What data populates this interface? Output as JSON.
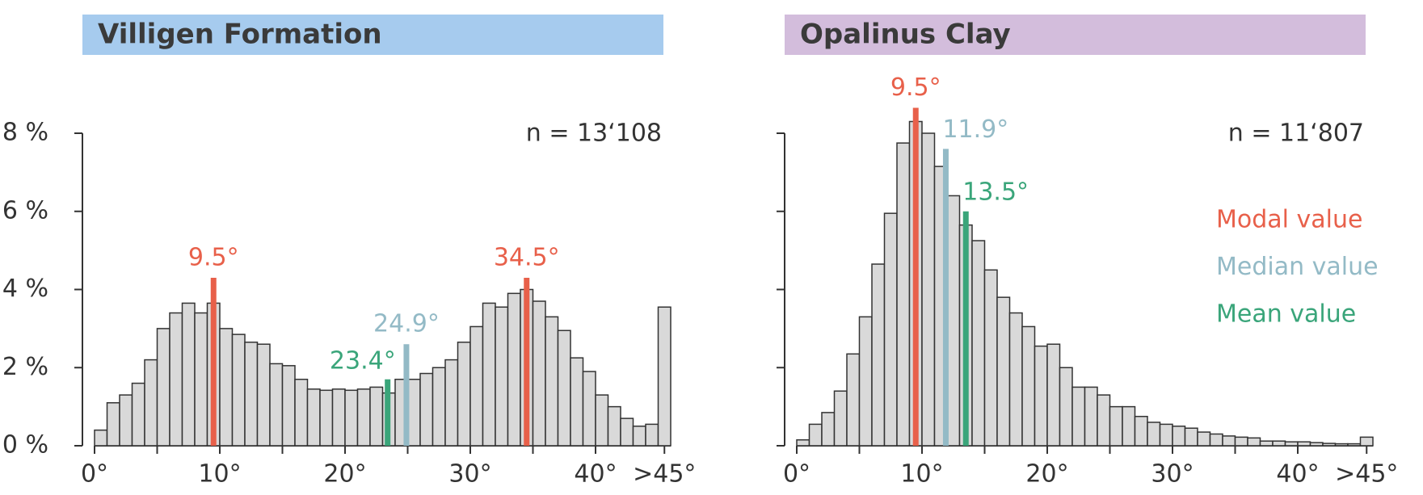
{
  "chart_data": [
    {
      "type": "histogram",
      "title": "Villigen Formation",
      "title_color": "#a6cbee",
      "annotation": "n = 13‘108",
      "bins": [
        0,
        1,
        2,
        3,
        4,
        5,
        6,
        7,
        8,
        9,
        10,
        11,
        12,
        13,
        14,
        15,
        16,
        17,
        18,
        19,
        20,
        21,
        22,
        23,
        24,
        25,
        26,
        27,
        28,
        29,
        30,
        31,
        32,
        33,
        34,
        35,
        36,
        37,
        38,
        39,
        40,
        41,
        42,
        43,
        44,
        45,
        46
      ],
      "values": [
        0.4,
        1.1,
        1.3,
        1.6,
        2.2,
        3.0,
        3.4,
        3.65,
        3.4,
        3.65,
        3.0,
        2.85,
        2.65,
        2.6,
        2.1,
        2.05,
        1.7,
        1.45,
        1.42,
        1.45,
        1.42,
        1.45,
        1.5,
        1.35,
        1.7,
        1.7,
        1.85,
        2.0,
        2.2,
        2.65,
        3.05,
        3.65,
        3.55,
        3.9,
        4.0,
        3.7,
        3.3,
        2.95,
        2.25,
        1.9,
        1.3,
        1.0,
        0.7,
        0.5,
        0.55,
        3.55
      ],
      "color": "#d9d9d9",
      "xlim": [
        0,
        46
      ],
      "ylim": [
        0,
        8
      ],
      "xticks": [
        {
          "value": 0,
          "label": "0°"
        },
        {
          "value": 10,
          "label": "10°"
        },
        {
          "value": 20,
          "label": "20°"
        },
        {
          "value": 30,
          "label": "30°"
        },
        {
          "value": 40,
          "label": "40°"
        },
        {
          "value": 45.5,
          "label": ">45°"
        }
      ],
      "xminor": [
        5,
        15,
        25,
        35
      ],
      "yticks": [
        {
          "value": 0,
          "label": "0 %"
        },
        {
          "value": 2,
          "label": "2 %"
        },
        {
          "value": 4,
          "label": "4 %"
        },
        {
          "value": 6,
          "label": "6 %"
        },
        {
          "value": 8,
          "label": "8 %"
        }
      ],
      "ytick_labels": true,
      "markers": [
        {
          "value": 9.5,
          "label": "9.5°",
          "color": "#e8604a",
          "top": 4.3,
          "label_pos": "above"
        },
        {
          "value": 34.5,
          "label": "34.5°",
          "color": "#e8604a",
          "top": 4.3,
          "label_pos": "above"
        },
        {
          "value": 24.9,
          "label": "24.9°",
          "color": "#93bac6",
          "top": 2.6,
          "label_pos": "above"
        },
        {
          "value": 23.4,
          "label": "23.4°",
          "color": "#3aa57a",
          "top": 1.7,
          "label_pos": "left"
        }
      ]
    },
    {
      "type": "histogram",
      "title": "Opalinus Clay",
      "title_color": "#d3bddc",
      "annotation": "n = 11‘807",
      "bins": [
        0,
        1,
        2,
        3,
        4,
        5,
        6,
        7,
        8,
        9,
        10,
        11,
        12,
        13,
        14,
        15,
        16,
        17,
        18,
        19,
        20,
        21,
        22,
        23,
        24,
        25,
        26,
        27,
        28,
        29,
        30,
        31,
        32,
        33,
        34,
        35,
        36,
        37,
        38,
        39,
        40,
        41,
        42,
        43,
        44,
        45,
        46
      ],
      "values": [
        0.15,
        0.55,
        0.85,
        1.4,
        2.35,
        3.3,
        4.65,
        5.95,
        7.75,
        8.3,
        8.0,
        7.15,
        6.4,
        5.65,
        5.25,
        4.5,
        3.8,
        3.4,
        3.05,
        2.55,
        2.6,
        2.0,
        1.5,
        1.5,
        1.3,
        1.0,
        1.0,
        0.75,
        0.6,
        0.55,
        0.5,
        0.45,
        0.35,
        0.3,
        0.25,
        0.22,
        0.2,
        0.12,
        0.12,
        0.1,
        0.1,
        0.08,
        0.06,
        0.05,
        0.05,
        0.22
      ],
      "color": "#d9d9d9",
      "xlim": [
        0,
        46
      ],
      "ylim": [
        0,
        8
      ],
      "xticks": [
        {
          "value": 0,
          "label": "0°"
        },
        {
          "value": 10,
          "label": "10°"
        },
        {
          "value": 20,
          "label": "20°"
        },
        {
          "value": 30,
          "label": "30°"
        },
        {
          "value": 40,
          "label": "40°"
        },
        {
          "value": 45.5,
          "label": ">45°"
        }
      ],
      "xminor": [
        5,
        15,
        25,
        35
      ],
      "yticks": [
        0,
        2,
        4,
        6,
        8
      ],
      "ytick_labels": false,
      "markers": [
        {
          "value": 9.5,
          "label": "9.5°",
          "color": "#e8604a",
          "top": 8.65,
          "label_pos": "above"
        },
        {
          "value": 11.9,
          "label": "11.9°",
          "color": "#93bac6",
          "top": 7.6,
          "label_pos": "right"
        },
        {
          "value": 13.5,
          "label": "13.5°",
          "color": "#3aa57a",
          "top": 6.0,
          "label_pos": "right"
        }
      ],
      "legend": [
        {
          "name": "Modal value",
          "color": "#e8604a"
        },
        {
          "name": "Median value",
          "color": "#93bac6"
        },
        {
          "name": "Mean value",
          "color": "#3aa57a"
        }
      ]
    }
  ]
}
